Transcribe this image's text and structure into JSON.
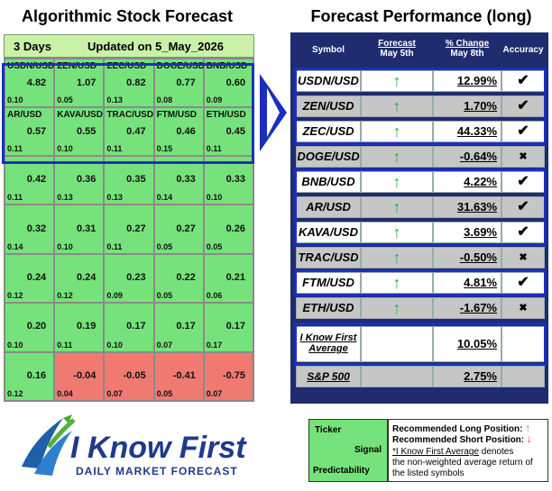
{
  "left": {
    "title": "Algorithmic Stock Forecast",
    "days": "3 Days",
    "updated": "Updated on 5_May_2026",
    "rows": [
      [
        {
          "s": "USDN/USD",
          "v": "4.82",
          "p": "0.10"
        },
        {
          "s": "ZEN/USD",
          "v": "1.07",
          "p": "0.05"
        },
        {
          "s": "ZEC/USD",
          "v": "0.82",
          "p": "0.13"
        },
        {
          "s": "DOGE/USD",
          "v": "0.77",
          "p": "0.08"
        },
        {
          "s": "BNB/USD",
          "v": "0.60",
          "p": "0.09"
        }
      ],
      [
        {
          "s": "AR/USD",
          "v": "0.57",
          "p": "0.11"
        },
        {
          "s": "KAVA/USD",
          "v": "0.55",
          "p": "0.10"
        },
        {
          "s": "TRAC/USD",
          "v": "0.47",
          "p": "0.11"
        },
        {
          "s": "FTM/USD",
          "v": "0.46",
          "p": "0.15"
        },
        {
          "s": "ETH/USD",
          "v": "0.45",
          "p": "0.11"
        }
      ],
      [
        {
          "s": "",
          "v": "0.42",
          "p": "0.11"
        },
        {
          "s": "",
          "v": "0.36",
          "p": "0.13"
        },
        {
          "s": "",
          "v": "0.35",
          "p": "0.13"
        },
        {
          "s": "",
          "v": "0.33",
          "p": "0.14"
        },
        {
          "s": "",
          "v": "0.33",
          "p": "0.10"
        }
      ],
      [
        {
          "s": "",
          "v": "0.32",
          "p": "0.14"
        },
        {
          "s": "",
          "v": "0.31",
          "p": "0.10"
        },
        {
          "s": "",
          "v": "0.27",
          "p": "0.11"
        },
        {
          "s": "",
          "v": "0.27",
          "p": "0.05"
        },
        {
          "s": "",
          "v": "0.26",
          "p": "0.05"
        }
      ],
      [
        {
          "s": "",
          "v": "0.24",
          "p": "0.12"
        },
        {
          "s": "",
          "v": "0.24",
          "p": "0.12"
        },
        {
          "s": "",
          "v": "0.23",
          "p": "0.09"
        },
        {
          "s": "",
          "v": "0.22",
          "p": "0.05"
        },
        {
          "s": "",
          "v": "0.21",
          "p": "0.06"
        }
      ],
      [
        {
          "s": "",
          "v": "0.20",
          "p": "0.10"
        },
        {
          "s": "",
          "v": "0.19",
          "p": "0.11"
        },
        {
          "s": "",
          "v": "0.17",
          "p": "0.10"
        },
        {
          "s": "",
          "v": "0.17",
          "p": "0.07"
        },
        {
          "s": "",
          "v": "0.17",
          "p": "0.17"
        }
      ],
      [
        {
          "s": "",
          "v": "0.16",
          "p": "0.12"
        },
        {
          "s": "",
          "v": "-0.04",
          "p": "0.04"
        },
        {
          "s": "",
          "v": "-0.05",
          "p": "0.07"
        },
        {
          "s": "",
          "v": "-0.41",
          "p": "0.05"
        },
        {
          "s": "",
          "v": "-0.75",
          "p": "0.07"
        }
      ]
    ]
  },
  "right": {
    "title": "Forecast Performance (long)",
    "headers": {
      "symbol": "Symbol",
      "forecast": "Forecast",
      "forecast_date": "May 5th",
      "change": "% Change",
      "change_date": "May 8th",
      "accuracy": "Accuracy"
    },
    "rows": [
      {
        "sym": "USDN/USD",
        "dir": "↑",
        "chg": "12.99%",
        "acc": "✔"
      },
      {
        "sym": "ZEN/USD",
        "dir": "↑",
        "chg": "1.70%",
        "acc": "✔"
      },
      {
        "sym": "ZEC/USD",
        "dir": "↑",
        "chg": "44.33%",
        "acc": "✔"
      },
      {
        "sym": "DOGE/USD",
        "dir": "↑",
        "chg": "-0.64%",
        "acc": "✖"
      },
      {
        "sym": "BNB/USD",
        "dir": "↑",
        "chg": "4.22%",
        "acc": "✔"
      },
      {
        "sym": "AR/USD",
        "dir": "↑",
        "chg": "31.63%",
        "acc": "✔"
      },
      {
        "sym": "KAVA/USD",
        "dir": "↑",
        "chg": "3.69%",
        "acc": "✔"
      },
      {
        "sym": "TRAC/USD",
        "dir": "↑",
        "chg": "-0.50%",
        "acc": "✖"
      },
      {
        "sym": "FTM/USD",
        "dir": "↑",
        "chg": "4.81%",
        "acc": "✔"
      },
      {
        "sym": "ETH/USD",
        "dir": "↑",
        "chg": "-1.67%",
        "acc": "✖"
      }
    ],
    "average_label_1": "I Know First",
    "average_label_2": "Average",
    "average_value": "10.05%",
    "sp_label": "S&P 500",
    "sp_value": "2.75%"
  },
  "legend": {
    "ticker": "Ticker",
    "signal": "Signal",
    "predictability": "Predictability",
    "long": "Recommended Long Position:",
    "long_icon": "↑",
    "short": "Recommended Short Position:",
    "short_icon": "↓",
    "note_1": "*I Know First Average",
    "note_2": " denotes",
    "note_3": "the non-weighted average return of",
    "note_4": "the listed symbols"
  },
  "logo": {
    "brand": "I Know First",
    "tagline": "DAILY MARKET FORECAST"
  },
  "colors": {
    "green": "#76e27b",
    "red": "#f07a72",
    "navy": "#1f2c6e",
    "blue": "#1a2fbf",
    "header_green": "#c9f1a8",
    "arrow_green": "#22b14c",
    "arrow_red": "#e03030"
  }
}
